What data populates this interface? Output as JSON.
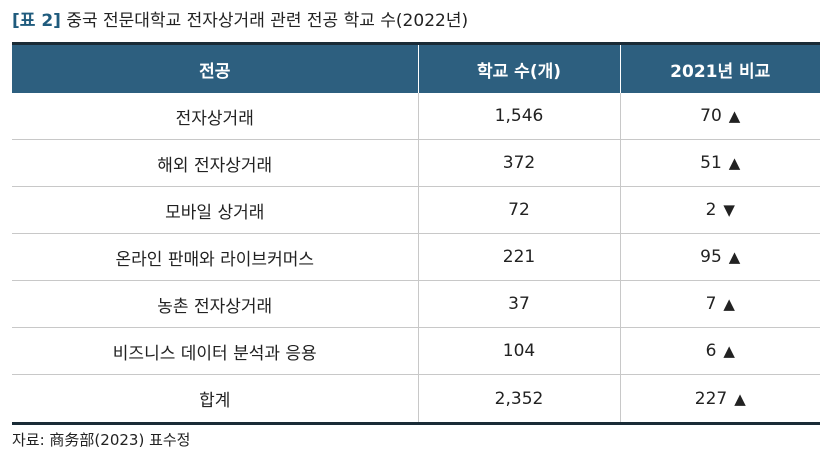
{
  "title": {
    "tag": "[표 2]",
    "text": "중국 전문대학교 전자상거래 관련 전공 학교 수(2022년)"
  },
  "table": {
    "headers": [
      "전공",
      "학교 수(개)",
      "2021년 비교"
    ],
    "rows": [
      {
        "major": "전자상거래",
        "count": "1,546",
        "change": "70",
        "arrow": "▲"
      },
      {
        "major": "해외 전자상거래",
        "count": "372",
        "change": "51",
        "arrow": "▲"
      },
      {
        "major": "모바일 상거래",
        "count": "72",
        "change": "2",
        "arrow": "▼"
      },
      {
        "major": "온라인 판매와 라이브커머스",
        "count": "221",
        "change": "95",
        "arrow": "▲"
      },
      {
        "major": "농촌 전자상거래",
        "count": "37",
        "change": "7",
        "arrow": "▲"
      },
      {
        "major": "비즈니스 데이터 분석과 응용",
        "count": "104",
        "change": "6",
        "arrow": "▲"
      },
      {
        "major": "합계",
        "count": "2,352",
        "change": "227",
        "arrow": "▲"
      }
    ]
  },
  "source": "자료: 商务部(2023) 표수정",
  "colors": {
    "header_bg": "#2d5f7f",
    "title_tag": "#1f5b7d",
    "rule_dark": "#1a2b36"
  }
}
